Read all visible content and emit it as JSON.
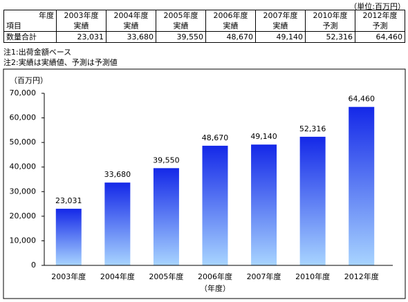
{
  "unit_note": "（単位:百万円）",
  "table": {
    "corner_top": "年度",
    "corner_bottom": "項目",
    "columns": [
      [
        "2003年度",
        "実績"
      ],
      [
        "2004年度",
        "実績"
      ],
      [
        "2005年度",
        "実績"
      ],
      [
        "2006年度",
        "実績"
      ],
      [
        "2007年度",
        "実績"
      ],
      [
        "2010年度",
        "予測"
      ],
      [
        "2012年度",
        "予測"
      ]
    ],
    "row_label": "数量合計",
    "values": [
      "23,031",
      "33,680",
      "39,550",
      "48,670",
      "49,140",
      "52,316",
      "64,460"
    ]
  },
  "notes": [
    "注1:出荷金額ベース",
    "注2:実績は実績値、予測は予測値"
  ],
  "chart_data": {
    "type": "bar",
    "y_unit_label": "（百万円）",
    "x_label": "（年度）",
    "categories": [
      "2003年度",
      "2004年度",
      "2005年度",
      "2006年度",
      "2007年度",
      "2010年度",
      "2012年度"
    ],
    "values": [
      23031,
      33680,
      39550,
      48670,
      49140,
      52316,
      64460
    ],
    "value_labels": [
      "23,031",
      "33,680",
      "39,550",
      "48,670",
      "49,140",
      "52,316",
      "64,460"
    ],
    "color_top": "#1428e8",
    "color_bottom": "#a8d4ff",
    "ylim": [
      0,
      70000
    ],
    "yticks": [
      0,
      {
        "value": 10000,
        "label": "10,000"
      },
      {
        "value": 20000,
        "label": "20,000"
      },
      {
        "value": 30000,
        "label": "30,000"
      },
      {
        "value": 40000,
        "label": "40,000"
      },
      {
        "value": 50000,
        "label": "50,000"
      },
      {
        "value": 60000,
        "label": "60,000"
      },
      {
        "value": 70000,
        "label": "70,000"
      }
    ]
  }
}
